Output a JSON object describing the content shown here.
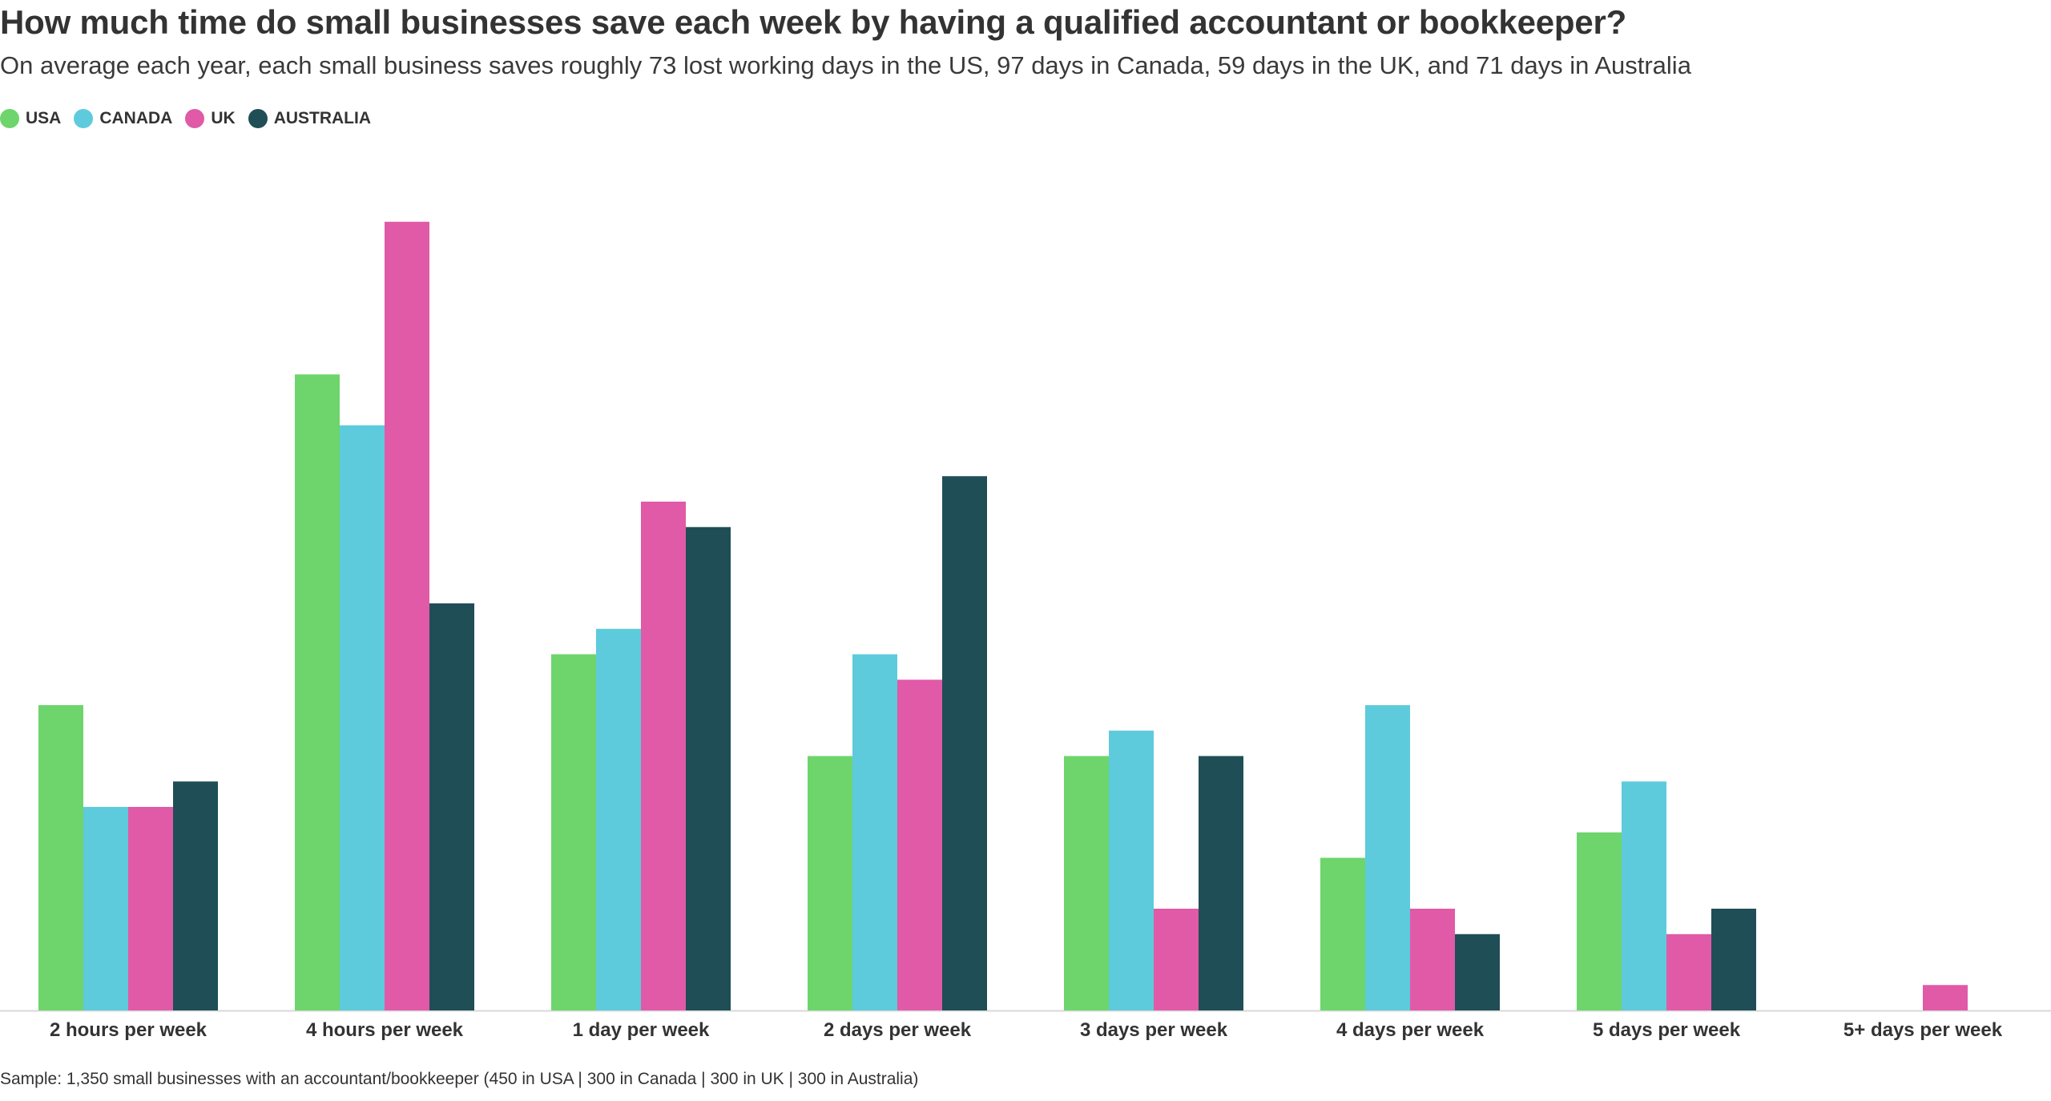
{
  "chart_data": {
    "type": "bar",
    "title": "How much time do small businesses save each week by having a qualified accountant or bookkeeper?",
    "subtitle": "On average each year, each small business saves roughly 73 lost working days in the US, 97 days in Canada, 59 days in the UK, and 71 days in Australia",
    "xlabel": "",
    "ylabel": "",
    "ylim": [
      0,
      32
    ],
    "grid": false,
    "legend_position": "top-left",
    "categories": [
      "2 hours per week",
      "4 hours per week",
      "1 day per week",
      "2 days per week",
      "3 days per week",
      "4 days per week",
      "5 days per week",
      "5+ days per week"
    ],
    "series": [
      {
        "name": "USA",
        "color": "#6dd56b",
        "values": [
          12,
          25,
          14,
          10,
          10,
          6,
          7,
          0
        ]
      },
      {
        "name": "CANADA",
        "color": "#5dcbdc",
        "values": [
          8,
          23,
          15,
          14,
          11,
          12,
          9,
          0
        ]
      },
      {
        "name": "UK",
        "color": "#e05aa8",
        "values": [
          8,
          31,
          20,
          13,
          4,
          4,
          3,
          1
        ]
      },
      {
        "name": "AUSTRALIA",
        "color": "#1f4e56",
        "values": [
          9,
          16,
          19,
          21,
          10,
          3,
          4,
          0
        ]
      }
    ],
    "footnote": "Sample: 1,350 small businesses with an accountant/bookkeeper (450 in USA | 300 in Canada | 300 in UK | 300 in Australia)"
  }
}
